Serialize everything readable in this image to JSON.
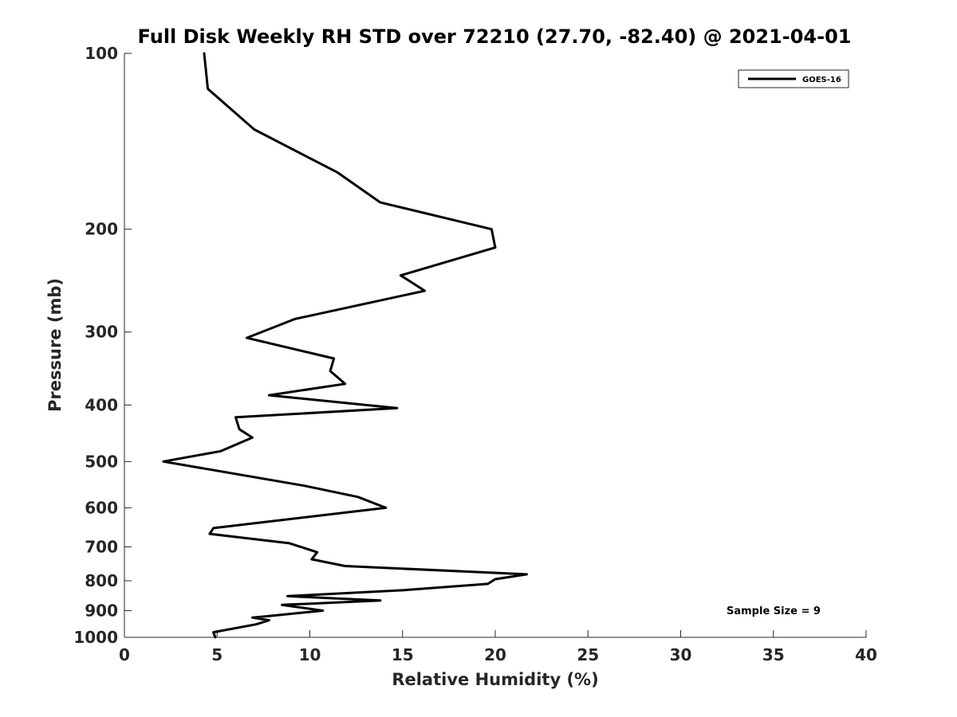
{
  "chart_data": {
    "type": "line",
    "title": "Full Disk Weekly RH STD over 72210 (27.70, -82.40) @ 2021-04-01",
    "xlabel": "Relative Humidity (%)",
    "ylabel": "Pressure (mb)",
    "xlim": [
      0,
      40
    ],
    "ylim": [
      100,
      1000
    ],
    "yscale": "log",
    "yreversed": true,
    "xticks": [
      0,
      5,
      10,
      15,
      20,
      25,
      30,
      35,
      40
    ],
    "xtick_labels": [
      "0",
      "5",
      "10",
      "15",
      "20",
      "25",
      "30",
      "35",
      "40"
    ],
    "yticks": [
      100,
      200,
      300,
      400,
      500,
      600,
      700,
      800,
      900,
      1000
    ],
    "ytick_labels": [
      "100",
      "200",
      "300",
      "400",
      "500",
      "600",
      "700",
      "800",
      "900",
      "1000"
    ],
    "grid": false,
    "legend_position": "top-right",
    "series": [
      {
        "name": "GOES-16",
        "color": "#000000",
        "x": [
          4.3,
          4.5,
          7.0,
          11.5,
          13.8,
          19.8,
          20.0,
          14.9,
          16.2,
          9.2,
          6.6,
          11.3,
          11.1,
          11.9,
          7.8,
          14.7,
          6.0,
          6.2,
          6.9,
          5.2,
          2.1,
          9.7,
          12.6,
          14.1,
          4.8,
          4.6,
          8.9,
          10.4,
          10.1,
          11.9,
          21.7,
          20.0,
          19.6,
          15.1,
          8.8,
          13.8,
          8.5,
          10.7,
          7.7,
          6.9,
          7.8,
          7.1,
          4.8,
          4.9
        ],
        "y": [
          100,
          115,
          135,
          160,
          180,
          200,
          215,
          240,
          255,
          285,
          307,
          333,
          350,
          368,
          385,
          405,
          420,
          440,
          455,
          480,
          500,
          550,
          575,
          600,
          650,
          665,
          690,
          715,
          735,
          755,
          780,
          795,
          810,
          830,
          850,
          865,
          880,
          900,
          920,
          925,
          935,
          950,
          980,
          1000
        ]
      }
    ],
    "legend": [
      {
        "label": "GOES-16",
        "series": 0
      }
    ],
    "annotations": [
      {
        "text": "Sample Size = 9"
      }
    ]
  }
}
